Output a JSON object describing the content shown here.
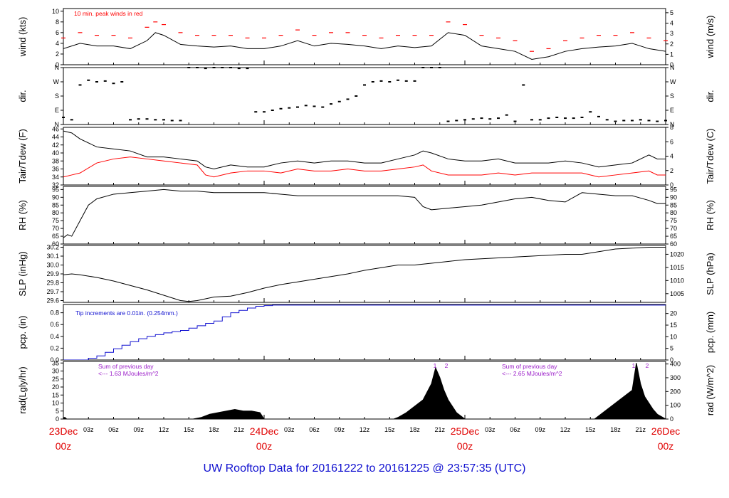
{
  "page_title": "UW Rooftop Data for 20161222  to  20161225 @ 23:57:35  (UTC)",
  "colors": {
    "black_series": "#000000",
    "red_series": "#ff0000",
    "blue_series": "#1010d0",
    "annotation_purple": "#9a1cc8",
    "date_labels": "#e00000"
  },
  "x_axis": {
    "range_hours": [
      0,
      72
    ],
    "minor_tick_labels": [
      "03z",
      "06z",
      "09z",
      "12z",
      "15z",
      "18z",
      "21z",
      "03z",
      "06z",
      "09z",
      "12z",
      "15z",
      "18z",
      "21z",
      "03z",
      "06z",
      "09z",
      "12z",
      "15z",
      "18z",
      "21z"
    ],
    "major_labels": [
      {
        "date": "23Dec",
        "time": "00z"
      },
      {
        "date": "24Dec",
        "time": "00z"
      },
      {
        "date": "25Dec",
        "time": "00z"
      },
      {
        "date": "26Dec",
        "time": "00z"
      }
    ]
  },
  "chart_data": [
    {
      "type": "line",
      "ylabel_left": "wind (kts)",
      "ylabel_right": "wind (m/s)",
      "yticks_left": [
        "0",
        "2",
        "4",
        "6",
        "8",
        "10"
      ],
      "yticks_right": [
        "0",
        "1",
        "2",
        "3",
        "4",
        "5"
      ],
      "ylim": [
        0,
        10.5
      ],
      "annotation": "10 min. peak winds in red",
      "series": [
        {
          "name": "wind",
          "x": [
            0,
            2,
            4,
            6,
            8,
            10,
            11,
            12,
            14,
            16,
            18,
            20,
            22,
            24,
            26,
            28,
            30,
            32,
            34,
            36,
            38,
            40,
            42,
            44,
            46,
            48,
            50,
            52,
            54,
            56,
            58,
            60,
            62,
            64,
            66,
            68,
            70,
            72
          ],
          "values": [
            3.0,
            4.0,
            3.5,
            3.5,
            3.0,
            4.5,
            6.0,
            5.5,
            3.8,
            3.5,
            3.3,
            3.5,
            3.0,
            3.0,
            3.5,
            4.5,
            3.5,
            4.0,
            3.8,
            3.5,
            3.0,
            3.5,
            3.2,
            3.5,
            6.0,
            5.5,
            3.5,
            3.0,
            2.5,
            1.0,
            1.5,
            2.5,
            3.0,
            3.3,
            3.5,
            4.0,
            3.0,
            2.5
          ]
        },
        {
          "name": "peak",
          "x": [
            0,
            2,
            4,
            6,
            8,
            10,
            11,
            12,
            14,
            16,
            18,
            20,
            22,
            24,
            26,
            28,
            30,
            32,
            34,
            36,
            38,
            40,
            42,
            44,
            46,
            48,
            50,
            52,
            54,
            56,
            58,
            60,
            62,
            64,
            66,
            68,
            70,
            72
          ],
          "values": [
            5.0,
            6.0,
            5.5,
            5.5,
            5.0,
            7.0,
            8.0,
            7.5,
            6.0,
            5.5,
            5.5,
            5.5,
            5.0,
            5.0,
            5.5,
            6.5,
            5.5,
            6.0,
            6.0,
            5.5,
            5.0,
            5.5,
            5.5,
            5.5,
            8.0,
            7.5,
            5.5,
            5.0,
            4.5,
            2.5,
            3.0,
            4.5,
            5.0,
            5.5,
            5.5,
            6.0,
            5.0,
            4.5
          ]
        }
      ]
    },
    {
      "type": "scatter",
      "ylabel_left": "dir.",
      "ylabel_right": "dir.",
      "yticks_left": [
        "N",
        "E",
        "S",
        "W",
        "N"
      ],
      "yticks_right": [
        "N",
        "E",
        "S",
        "W",
        "N"
      ],
      "ylim": [
        0,
        360
      ],
      "series": [
        {
          "name": "direction",
          "x": [
            0,
            1,
            2,
            3,
            4,
            5,
            6,
            7,
            8,
            9,
            10,
            11,
            12,
            13,
            14,
            15,
            16,
            17,
            18,
            19,
            20,
            21,
            22,
            23,
            24,
            25,
            26,
            27,
            28,
            29,
            30,
            31,
            32,
            33,
            34,
            35,
            36,
            37,
            38,
            39,
            40,
            41,
            42,
            43,
            44,
            45,
            46,
            47,
            48,
            49,
            50,
            51,
            52,
            53,
            54,
            55,
            56,
            57,
            58,
            59,
            60,
            61,
            62,
            63,
            64,
            65,
            66,
            67,
            68,
            69,
            70,
            71,
            72
          ],
          "values": [
            45,
            30,
            250,
            280,
            270,
            275,
            260,
            270,
            30,
            35,
            35,
            30,
            30,
            25,
            25,
            360,
            360,
            355,
            360,
            360,
            360,
            355,
            355,
            80,
            80,
            90,
            100,
            105,
            110,
            120,
            115,
            110,
            130,
            145,
            160,
            180,
            250,
            270,
            275,
            270,
            280,
            275,
            275,
            360,
            360,
            360,
            20,
            25,
            30,
            35,
            40,
            35,
            40,
            60,
            20,
            250,
            30,
            30,
            40,
            45,
            40,
            40,
            45,
            80,
            50,
            30,
            20,
            25,
            25,
            30,
            25,
            20,
            25
          ]
        }
      ]
    },
    {
      "type": "line",
      "ylabel_left": "Tair/Tdew (F)",
      "ylabel_right": "Tair/Tdew (C)",
      "yticks_left": [
        "32",
        "34",
        "36",
        "38",
        "40",
        "42",
        "44",
        "46"
      ],
      "yticks_right": [
        "0",
        "2",
        "4",
        "6",
        "8"
      ],
      "ylim": [
        32,
        46.4
      ],
      "series": [
        {
          "name": "Tair",
          "x": [
            0,
            1,
            2,
            4,
            6,
            8,
            10,
            12,
            14,
            16,
            17,
            18,
            20,
            22,
            24,
            26,
            28,
            30,
            32,
            34,
            36,
            38,
            40,
            42,
            43,
            44,
            46,
            48,
            50,
            52,
            54,
            56,
            58,
            60,
            62,
            64,
            66,
            68,
            70,
            71,
            72
          ],
          "values": [
            45.5,
            45.0,
            43.5,
            41.5,
            41.0,
            40.5,
            39.0,
            39.0,
            38.5,
            38.0,
            36.5,
            36.0,
            37.0,
            36.5,
            36.5,
            37.5,
            38.0,
            37.5,
            38.0,
            38.0,
            37.5,
            37.5,
            38.5,
            39.5,
            40.5,
            40.0,
            38.5,
            38.0,
            38.0,
            38.5,
            37.5,
            37.5,
            37.5,
            38.0,
            37.5,
            36.5,
            37.0,
            37.5,
            39.5,
            38.5,
            38.5
          ]
        },
        {
          "name": "Tdew",
          "x": [
            0,
            1,
            2,
            4,
            6,
            8,
            10,
            12,
            14,
            16,
            17,
            18,
            20,
            22,
            24,
            26,
            28,
            30,
            32,
            34,
            36,
            38,
            40,
            42,
            43,
            44,
            46,
            48,
            50,
            52,
            54,
            56,
            58,
            60,
            62,
            64,
            66,
            68,
            70,
            71,
            72
          ],
          "values": [
            34.0,
            34.5,
            35.0,
            37.5,
            38.5,
            39.0,
            38.5,
            38.0,
            37.5,
            37.0,
            34.5,
            34.0,
            35.0,
            35.5,
            35.5,
            35.0,
            36.0,
            35.5,
            35.5,
            36.0,
            35.5,
            35.5,
            36.0,
            36.5,
            37.0,
            35.5,
            34.5,
            34.5,
            34.5,
            35.0,
            34.5,
            35.0,
            35.0,
            35.0,
            35.0,
            34.0,
            34.5,
            35.0,
            35.5,
            34.5,
            34.5
          ]
        }
      ]
    },
    {
      "type": "line",
      "ylabel_left": "RH (%)",
      "ylabel_right": "RH (%)",
      "yticks_left": [
        "60",
        "65",
        "70",
        "75",
        "80",
        "85",
        "90",
        "95"
      ],
      "yticks_right": [
        "60",
        "65",
        "70",
        "75",
        "80",
        "85",
        "90",
        "95"
      ],
      "ylim": [
        60,
        97
      ],
      "series": [
        {
          "name": "RH",
          "x": [
            0,
            0.5,
            1,
            2,
            3,
            4,
            6,
            8,
            10,
            12,
            14,
            16,
            18,
            20,
            22,
            24,
            26,
            28,
            30,
            32,
            34,
            36,
            38,
            40,
            42,
            43,
            44,
            46,
            48,
            50,
            52,
            54,
            56,
            58,
            60,
            62,
            64,
            66,
            68,
            70,
            71,
            72
          ],
          "values": [
            64,
            66,
            65,
            75,
            85,
            89,
            92,
            93,
            94,
            95,
            94,
            94,
            93,
            93,
            93,
            93,
            92,
            91,
            91,
            91,
            91,
            91,
            91,
            91,
            90,
            84,
            82,
            83,
            84,
            85,
            87,
            89,
            90,
            88,
            87,
            93,
            92,
            91,
            91,
            88,
            86,
            86
          ]
        }
      ]
    },
    {
      "type": "line",
      "ylabel_left": "SLP (inHg)",
      "ylabel_right": "SLP (hPa)",
      "yticks_left": [
        "29.6",
        "29.7",
        "29.8",
        "29.9",
        "30.0",
        "30.1",
        "30.2"
      ],
      "yticks_right": [
        "1005",
        "1010",
        "1015",
        "1020"
      ],
      "ylim": [
        29.58,
        30.22
      ],
      "series": [
        {
          "name": "SLP",
          "x": [
            0,
            1,
            2,
            4,
            6,
            8,
            10,
            12,
            14,
            15,
            16,
            18,
            20,
            22,
            24,
            26,
            28,
            30,
            32,
            34,
            36,
            38,
            40,
            42,
            44,
            46,
            48,
            50,
            52,
            54,
            56,
            58,
            60,
            62,
            64,
            66,
            68,
            70,
            72
          ],
          "values": [
            29.89,
            29.9,
            29.89,
            29.86,
            29.82,
            29.77,
            29.72,
            29.66,
            29.6,
            29.59,
            29.6,
            29.64,
            29.65,
            29.69,
            29.74,
            29.78,
            29.81,
            29.84,
            29.87,
            29.9,
            29.94,
            29.97,
            30.0,
            30.0,
            30.02,
            30.04,
            30.06,
            30.07,
            30.08,
            30.09,
            30.1,
            30.11,
            30.12,
            30.12,
            30.15,
            30.18,
            30.19,
            30.2,
            30.2
          ]
        }
      ]
    },
    {
      "type": "line",
      "ylabel_left": "pcp. (in)",
      "ylabel_right": "pcp. (mm)",
      "yticks_left": [
        "0.0",
        "0.2",
        "0.4",
        "0.6",
        "0.8"
      ],
      "yticks_right": [
        "0",
        "5",
        "10",
        "15",
        "20"
      ],
      "ylim": [
        0,
        0.94
      ],
      "annotation": "Tip increments are 0.01in. (0.254mm.)",
      "series": [
        {
          "name": "precipitation",
          "x": [
            0,
            2,
            3,
            4,
            5,
            6,
            7,
            8,
            9,
            10,
            11,
            12,
            13,
            14,
            15,
            16,
            17,
            18,
            19,
            20,
            21,
            22,
            23,
            24,
            25,
            72
          ],
          "values": [
            0.0,
            0.0,
            0.03,
            0.07,
            0.13,
            0.19,
            0.25,
            0.31,
            0.36,
            0.4,
            0.43,
            0.46,
            0.48,
            0.5,
            0.54,
            0.58,
            0.62,
            0.66,
            0.73,
            0.8,
            0.84,
            0.88,
            0.91,
            0.92,
            0.93,
            0.93
          ]
        }
      ]
    },
    {
      "type": "area",
      "ylabel_left": "rad(Lgly/hr)",
      "ylabel_right": "rad (W/m^2)",
      "yticks_left": [
        "0",
        "5",
        "10",
        "15",
        "20",
        "25",
        "30",
        "35"
      ],
      "yticks_right": [
        "0",
        "100",
        "200",
        "300",
        "400"
      ],
      "ylim": [
        0,
        36
      ],
      "annotations": [
        {
          "line1": "Sum of previous day",
          "line2": "<--- 1.63 MJoules/m^2"
        },
        {
          "line1": "Sum of previous day",
          "line2": "<--- 2.65 MJoules/m^2"
        }
      ],
      "markers": [
        "1",
        "2",
        "1",
        "2"
      ],
      "series": [
        {
          "name": "radiation",
          "x": [
            0,
            0.2,
            0.4,
            15.5,
            16.5,
            17.5,
            18.5,
            19.5,
            20.5,
            21.5,
            22.5,
            23.5,
            24,
            39.5,
            40,
            41,
            42,
            43,
            44,
            44.5,
            45,
            45.5,
            46,
            46.5,
            47,
            47.5,
            48,
            63.5,
            64,
            65,
            66,
            67,
            68,
            68.5,
            69,
            69.5,
            70,
            70.5,
            71,
            72
          ],
          "values": [
            1,
            1,
            0,
            0,
            1,
            3,
            4,
            5,
            6,
            5,
            5,
            4,
            0,
            0,
            1,
            4,
            8,
            12,
            22,
            32,
            26,
            18,
            12,
            8,
            4,
            2,
            0,
            0,
            2,
            6,
            10,
            14,
            18,
            35,
            22,
            14,
            10,
            6,
            3,
            0
          ]
        }
      ]
    }
  ]
}
